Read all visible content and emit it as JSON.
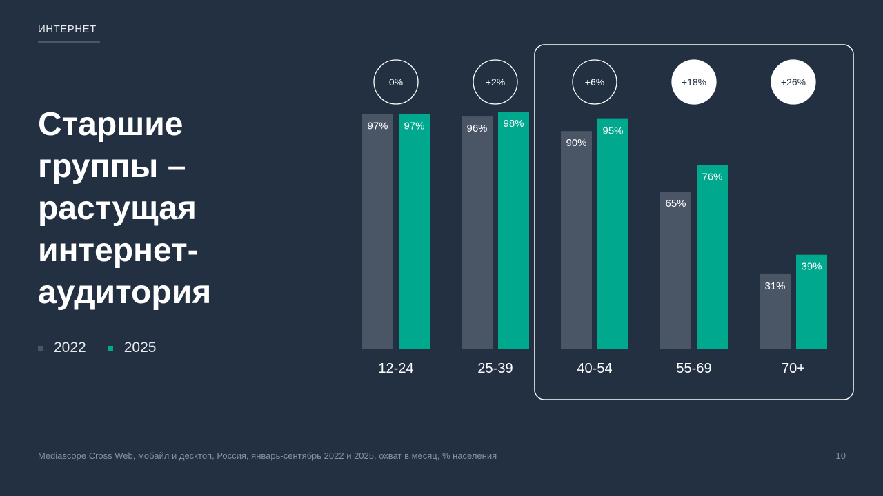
{
  "header": {
    "section": "ИНТЕРНЕТ"
  },
  "headline": "Старшие\nгруппы –\nрастущая\nинтернет-\nаудитория",
  "footer": {
    "source": "Mediascope Cross Web, мобайл и десктоп, Россия, январь-сентябрь 2022 и 2025, охват в месяц, % населения",
    "page": "10"
  },
  "colors": {
    "background": "#233042",
    "series_2022": "#4a5666",
    "series_2025": "#00a88e",
    "highlight": "#ffffff"
  },
  "chart_data": {
    "type": "bar",
    "categories": [
      "12-24",
      "25-39",
      "40-54",
      "55-69",
      "70+"
    ],
    "series": [
      {
        "name": "2022",
        "values": [
          97,
          96,
          90,
          65,
          31
        ],
        "labels": [
          "97%",
          "96%",
          "90%",
          "65%",
          "31%"
        ]
      },
      {
        "name": "2025",
        "values": [
          97,
          98,
          95,
          76,
          39
        ],
        "labels": [
          "97%",
          "98%",
          "95%",
          "76%",
          "39%"
        ]
      }
    ],
    "changes": [
      "0%",
      "+2%",
      "+6%",
      "+18%",
      "+26%"
    ],
    "changes_filled": [
      false,
      false,
      false,
      true,
      true
    ],
    "highlighted_categories": [
      "40-54",
      "55-69",
      "70+"
    ],
    "ylim": [
      0,
      100
    ],
    "legend_position": "left"
  }
}
